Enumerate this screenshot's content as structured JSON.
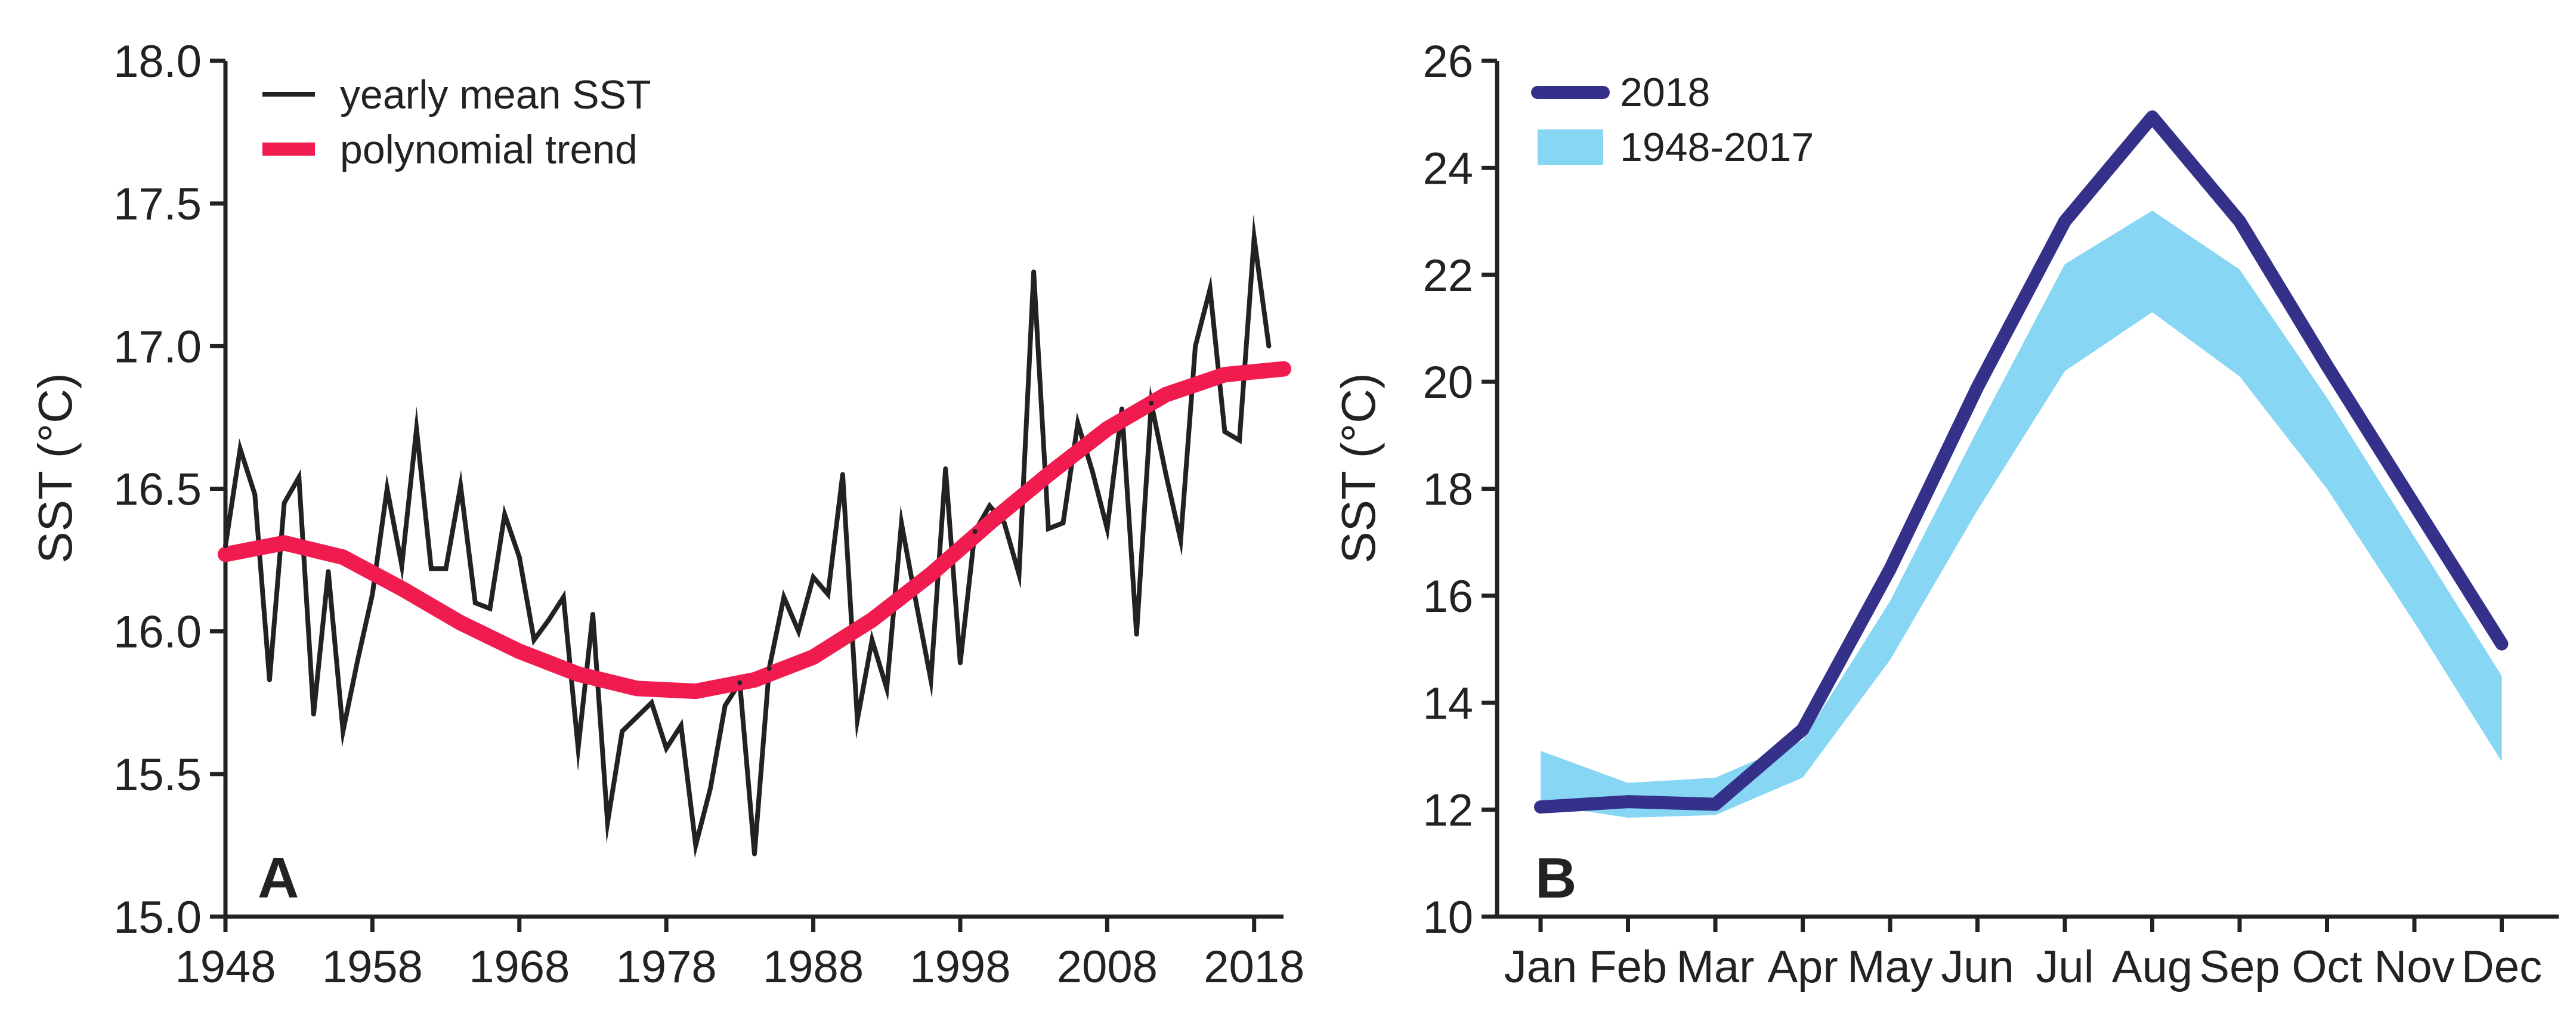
{
  "colors": {
    "sst_line": "#222222",
    "trend": "#F01B4F",
    "line_2018": "#35318A",
    "band_1948_2017": "#86D6F4",
    "axis": "#222222"
  },
  "chart_data": [
    {
      "panel": "A",
      "type": "line",
      "title": "",
      "xlabel": "",
      "ylabel": "SST (°C)",
      "xlim": [
        1948,
        2020
      ],
      "ylim": [
        15.0,
        18.0
      ],
      "x_ticks": [
        1948,
        1958,
        1968,
        1978,
        1988,
        1998,
        2008,
        2018
      ],
      "x_tick_labels": [
        "1948",
        "1958",
        "1968",
        "1978",
        "1988",
        "1998",
        "2008",
        "2018"
      ],
      "y_ticks": [
        15.0,
        15.5,
        16.0,
        16.5,
        17.0,
        17.5,
        18.0
      ],
      "y_tick_labels": [
        "15.0",
        "15.5",
        "16.0",
        "16.5",
        "17.0",
        "17.5",
        "18.0"
      ],
      "legend_position": "top-left",
      "series": [
        {
          "name": "yearly mean SST",
          "color": "#222222",
          "x": [
            1948,
            1949,
            1950,
            1951,
            1952,
            1953,
            1954,
            1955,
            1956,
            1957,
            1958,
            1959,
            1960,
            1961,
            1962,
            1963,
            1964,
            1965,
            1966,
            1967,
            1968,
            1969,
            1970,
            1971,
            1972,
            1973,
            1974,
            1975,
            1976,
            1977,
            1978,
            1979,
            1980,
            1981,
            1982,
            1983,
            1984,
            1985,
            1986,
            1987,
            1988,
            1989,
            1990,
            1991,
            1992,
            1993,
            1994,
            1995,
            1996,
            1997,
            1998,
            1999,
            2000,
            2001,
            2002,
            2003,
            2004,
            2005,
            2006,
            2007,
            2008,
            2009,
            2010,
            2011,
            2012,
            2013,
            2014,
            2015,
            2016,
            2017,
            2018,
            2019
          ],
          "values": [
            16.3,
            16.64,
            16.48,
            15.83,
            16.45,
            16.54,
            15.71,
            16.21,
            15.65,
            15.9,
            16.13,
            16.5,
            16.23,
            16.71,
            16.22,
            16.22,
            16.51,
            16.1,
            16.08,
            16.41,
            16.26,
            15.97,
            16.04,
            16.12,
            15.59,
            16.06,
            15.33,
            15.65,
            15.7,
            15.75,
            15.59,
            15.67,
            15.25,
            15.45,
            15.74,
            15.82,
            15.22,
            15.87,
            16.12,
            16.0,
            16.19,
            16.13,
            16.55,
            15.69,
            15.97,
            15.8,
            16.38,
            16.1,
            15.83,
            16.57,
            15.89,
            16.35,
            16.44,
            16.38,
            16.2,
            17.26,
            16.36,
            16.38,
            16.73,
            16.56,
            16.36,
            16.78,
            15.99,
            16.8,
            16.55,
            16.32,
            17.0,
            17.2,
            16.7,
            16.67,
            17.38,
            17.0
          ]
        },
        {
          "name": "polynomial trend",
          "color": "#F01B4F",
          "x": [
            1948,
            1952,
            1956,
            1960,
            1964,
            1968,
            1972,
            1976,
            1980,
            1984,
            1988,
            1992,
            1996,
            2000,
            2004,
            2008,
            2012,
            2016,
            2020
          ],
          "values": [
            16.27,
            16.31,
            16.26,
            16.15,
            16.03,
            15.93,
            15.85,
            15.8,
            15.79,
            15.83,
            15.91,
            16.04,
            16.2,
            16.38,
            16.55,
            16.71,
            16.83,
            16.9,
            16.92
          ]
        }
      ]
    },
    {
      "panel": "B",
      "type": "line",
      "title": "",
      "xlabel": "",
      "ylabel": "SST (°C)",
      "ylim": [
        10,
        26
      ],
      "categories": [
        "Jan",
        "Feb",
        "Mar",
        "Apr",
        "May",
        "Jun",
        "Jul",
        "Aug",
        "Sep",
        "Oct",
        "Nov",
        "Dec"
      ],
      "y_ticks": [
        10,
        12,
        14,
        16,
        18,
        20,
        22,
        24,
        26
      ],
      "y_tick_labels": [
        "10",
        "12",
        "14",
        "16",
        "18",
        "20",
        "22",
        "24",
        "26"
      ],
      "legend_position": "top-left",
      "series": [
        {
          "name": "2018",
          "color": "#35318A",
          "values": [
            12.05,
            12.15,
            12.1,
            13.5,
            16.5,
            19.9,
            23.0,
            24.95,
            23.0,
            20.3,
            17.7,
            15.1
          ]
        }
      ],
      "bands": [
        {
          "name": "1948-2017",
          "color": "#86D6F4",
          "lower": [
            12.1,
            11.85,
            11.9,
            12.6,
            14.8,
            17.6,
            20.2,
            21.3,
            20.1,
            18.0,
            15.5,
            12.9
          ],
          "upper": [
            13.1,
            12.5,
            12.6,
            13.3,
            15.9,
            19.1,
            22.2,
            23.2,
            22.1,
            19.7,
            17.1,
            14.5
          ]
        }
      ]
    }
  ]
}
